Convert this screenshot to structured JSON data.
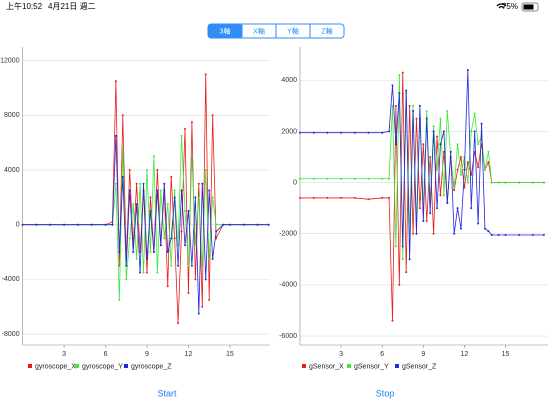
{
  "status_bar": {
    "time": "上午10:52",
    "date": "4月21日 週二",
    "battery": "75%"
  },
  "segments": [
    "3軸",
    "X軸",
    "Y軸",
    "Z軸"
  ],
  "buttons": {
    "start": "Start",
    "stop": "Stop"
  },
  "chart_data": [
    {
      "type": "line",
      "x": [
        0,
        1,
        2,
        3,
        4,
        5,
        6,
        6.5,
        6.75,
        7,
        7.25,
        7.5,
        7.75,
        8,
        8.25,
        8.5,
        8.75,
        9,
        9.25,
        9.5,
        9.75,
        10,
        10.25,
        10.5,
        10.75,
        11,
        11.25,
        11.5,
        11.75,
        12,
        12.25,
        12.5,
        12.75,
        13,
        13.25,
        13.5,
        13.75,
        14,
        14.5,
        15,
        16,
        17,
        17.8
      ],
      "xlim": [
        0,
        17.9
      ],
      "xticks": [
        3,
        6,
        9,
        12,
        15
      ],
      "ylim": [
        -8800,
        13000
      ],
      "yticks": [
        -8000,
        -4000,
        0,
        4000,
        8000,
        12000
      ],
      "grid": true,
      "series": [
        {
          "name": "gyroscope_X",
          "color": "#e8201c",
          "values": [
            0,
            0,
            0,
            0,
            0,
            0,
            0,
            200,
            10500,
            -3000,
            8000,
            -2500,
            4000,
            -1500,
            3000,
            -2000,
            2500,
            -3500,
            2000,
            -2000,
            4000,
            -1500,
            2500,
            -4500,
            3500,
            -1000,
            -7200,
            -500,
            7000,
            -5000,
            7500,
            -4000,
            3000,
            -6000,
            11000,
            -5500,
            8000,
            -1000,
            0,
            0,
            0,
            0,
            0
          ]
        },
        {
          "name": "gyroscope_Y",
          "color": "#3ee83c",
          "values": [
            0,
            0,
            0,
            0,
            0,
            0,
            0,
            0,
            3000,
            -5500,
            5500,
            -4000,
            -1000,
            1500,
            -2500,
            3000,
            -3500,
            4000,
            -2000,
            5000,
            -3500,
            2500,
            -1000,
            1500,
            -3000,
            2500,
            -1500,
            6500,
            1000,
            -3000,
            5000,
            -1500,
            2000,
            -3000,
            4000,
            -2500,
            2000,
            0,
            0,
            0,
            0,
            0,
            0
          ]
        },
        {
          "name": "gyroscope_Z",
          "color": "#2128d8",
          "values": [
            0,
            0,
            0,
            0,
            0,
            0,
            0,
            0,
            6500,
            -2000,
            3500,
            -3000,
            2500,
            -2000,
            1500,
            -3500,
            3000,
            -2500,
            1000,
            -2000,
            2500,
            -1500,
            3000,
            -2000,
            -1000,
            2000,
            -3000,
            2500,
            -1500,
            1000,
            -3000,
            2000,
            -6500,
            3000,
            -4000,
            2500,
            -2500,
            -500,
            0,
            0,
            0,
            0,
            0
          ]
        }
      ]
    },
    {
      "type": "line",
      "x": [
        0,
        1,
        2,
        3,
        4,
        5,
        6,
        6.5,
        6.75,
        7,
        7.25,
        7.5,
        7.75,
        8,
        8.25,
        8.5,
        8.75,
        9,
        9.25,
        9.5,
        9.75,
        10,
        10.25,
        10.5,
        10.75,
        11,
        11.25,
        11.5,
        11.75,
        12,
        12.25,
        12.5,
        12.75,
        13,
        13.25,
        13.5,
        13.75,
        14,
        14.5,
        15,
        16,
        17,
        17.8
      ],
      "xlim": [
        0,
        18.1
      ],
      "xticks": [
        3,
        6,
        9,
        12,
        15
      ],
      "ylim": [
        -6350,
        5300
      ],
      "yticks": [
        -6000,
        -4000,
        -2000,
        0,
        2000,
        4000
      ],
      "grid": true,
      "series": [
        {
          "name": "gSensor_X",
          "color": "#e8201c",
          "values": [
            -600,
            -600,
            -600,
            -600,
            -600,
            -650,
            -600,
            -600,
            -5400,
            3000,
            -4000,
            4300,
            -3500,
            3000,
            -2000,
            2500,
            -1000,
            1500,
            -1500,
            1000,
            -2000,
            1800,
            -500,
            1200,
            -800,
            1000,
            -300,
            500,
            1000,
            -200,
            800,
            300,
            1200,
            600,
            1500,
            500,
            800,
            0,
            0,
            0,
            0,
            0,
            0
          ]
        },
        {
          "name": "gSensor_Y",
          "color": "#3ee83c",
          "values": [
            150,
            150,
            150,
            150,
            150,
            150,
            150,
            150,
            3000,
            -2500,
            4200,
            -3000,
            3500,
            -2000,
            3000,
            -1500,
            2500,
            -1000,
            2800,
            -800,
            2200,
            500,
            2500,
            -500,
            2800,
            1000,
            -200,
            1500,
            300,
            1000,
            0,
            2000,
            2700,
            1500,
            1800,
            500,
            1200,
            0,
            0,
            0,
            0,
            0,
            0
          ]
        },
        {
          "name": "gSensor_Z",
          "color": "#2128d8",
          "values": [
            1950,
            1950,
            1950,
            1950,
            1950,
            1950,
            1950,
            2000,
            3800,
            1500,
            3500,
            -2500,
            3600,
            -3000,
            2800,
            -2000,
            3000,
            -1500,
            2500,
            -1200,
            2000,
            -1000,
            1500,
            2000,
            -800,
            1200,
            -2000,
            -1000,
            -1800,
            500,
            4400,
            -1000,
            2000,
            -1600,
            2300,
            -1800,
            -1900,
            -2050,
            -2050,
            -2050,
            -2050,
            -2050,
            -2050
          ]
        }
      ]
    }
  ]
}
